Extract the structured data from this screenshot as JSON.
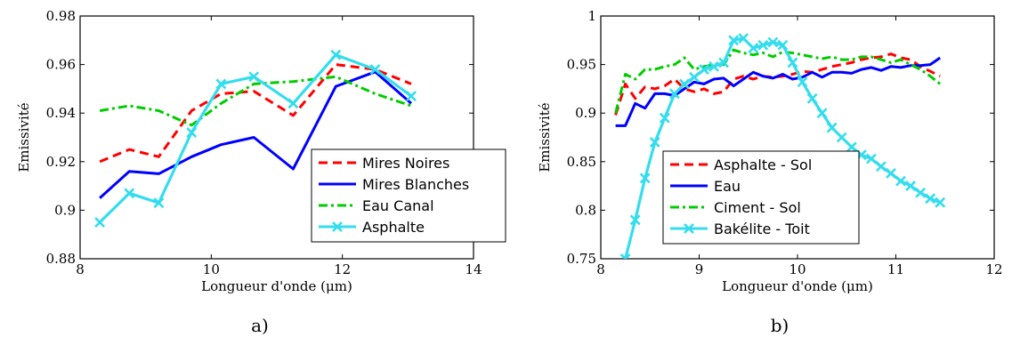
{
  "chart_data": [
    {
      "type": "line",
      "panel_label": "a)",
      "xlabel": "Longueur d'onde (μm)",
      "ylabel": "Emissivité",
      "xlim": [
        8,
        14
      ],
      "ylim": [
        0.88,
        0.98
      ],
      "xticks": [
        8,
        10,
        12,
        14
      ],
      "yticks": [
        0.88,
        0.9,
        0.92,
        0.94,
        0.96,
        0.98
      ],
      "xtick_labels": [
        "8",
        "10",
        "12",
        "14"
      ],
      "ytick_labels": [
        "0.88",
        "0.9",
        "0.92",
        "0.94",
        "0.96",
        "0.98"
      ],
      "grid": false,
      "legend_position": "bottom-right",
      "series": [
        {
          "name": "Mires Noires",
          "color": "#ff0000",
          "style": "dashed",
          "marker": "none",
          "x": [
            8.3,
            8.75,
            9.2,
            9.7,
            10.15,
            10.65,
            11.25,
            11.9,
            12.5,
            13.05
          ],
          "y": [
            0.92,
            0.925,
            0.922,
            0.941,
            0.948,
            0.949,
            0.939,
            0.96,
            0.958,
            0.952
          ]
        },
        {
          "name": "Mires Blanches",
          "color": "#0000ff",
          "style": "solid",
          "marker": "none",
          "x": [
            8.3,
            8.75,
            9.2,
            9.7,
            10.15,
            10.65,
            11.25,
            11.9,
            12.5,
            13.05
          ],
          "y": [
            0.905,
            0.916,
            0.915,
            0.922,
            0.927,
            0.93,
            0.917,
            0.951,
            0.957,
            0.944
          ]
        },
        {
          "name": "Eau Canal",
          "color": "#00cc00",
          "style": "dashdot",
          "marker": "none",
          "x": [
            8.3,
            8.75,
            9.2,
            9.7,
            10.15,
            10.65,
            11.25,
            11.9,
            12.5,
            13.05
          ],
          "y": [
            0.941,
            0.943,
            0.941,
            0.935,
            0.944,
            0.952,
            0.953,
            0.955,
            0.948,
            0.943
          ]
        },
        {
          "name": "Asphalte",
          "color": "#33ddee",
          "style": "solid",
          "marker": "x",
          "x": [
            8.3,
            8.75,
            9.2,
            9.7,
            10.15,
            10.65,
            11.25,
            11.9,
            12.5,
            13.05
          ],
          "y": [
            0.895,
            0.907,
            0.903,
            0.932,
            0.952,
            0.955,
            0.944,
            0.964,
            0.958,
            0.947
          ]
        }
      ]
    },
    {
      "type": "line",
      "panel_label": "b)",
      "xlabel": "Longueur d'onde (μm)",
      "ylabel": "Emissivité",
      "xlim": [
        8,
        12
      ],
      "ylim": [
        0.75,
        1
      ],
      "xticks": [
        8,
        9,
        10,
        11,
        12
      ],
      "yticks": [
        0.75,
        0.8,
        0.85,
        0.9,
        0.95,
        1
      ],
      "xtick_labels": [
        "8",
        "9",
        "10",
        "11",
        "12"
      ],
      "ytick_labels": [
        "0.75",
        "0.8",
        "0.85",
        "0.9",
        "0.95",
        "1"
      ],
      "grid": false,
      "legend_position": "bottom-left",
      "series": [
        {
          "name": "Asphalte - Sol",
          "color": "#ff0000",
          "style": "dashed",
          "marker": "none",
          "x": [
            8.15,
            8.25,
            8.35,
            8.45,
            8.55,
            8.65,
            8.75,
            8.85,
            8.95,
            9.05,
            9.15,
            9.25,
            9.35,
            9.45,
            9.55,
            9.65,
            9.75,
            9.85,
            9.95,
            10.05,
            10.15,
            10.25,
            10.35,
            10.45,
            10.55,
            10.65,
            10.75,
            10.85,
            10.95,
            11.05,
            11.15,
            11.25,
            11.35,
            11.45
          ],
          "y": [
            0.898,
            0.93,
            0.915,
            0.927,
            0.925,
            0.928,
            0.935,
            0.925,
            0.922,
            0.925,
            0.92,
            0.922,
            0.935,
            0.938,
            0.935,
            0.938,
            0.937,
            0.938,
            0.94,
            0.943,
            0.942,
            0.945,
            0.948,
            0.95,
            0.952,
            0.955,
            0.957,
            0.958,
            0.961,
            0.957,
            0.955,
            0.948,
            0.943,
            0.938
          ]
        },
        {
          "name": "Eau",
          "color": "#0000ff",
          "style": "solid",
          "marker": "none",
          "x": [
            8.15,
            8.25,
            8.35,
            8.45,
            8.55,
            8.65,
            8.75,
            8.85,
            8.95,
            9.05,
            9.15,
            9.25,
            9.35,
            9.45,
            9.55,
            9.65,
            9.75,
            9.85,
            9.95,
            10.05,
            10.15,
            10.25,
            10.35,
            10.45,
            10.55,
            10.65,
            10.75,
            10.85,
            10.95,
            11.05,
            11.15,
            11.25,
            11.35,
            11.45
          ],
          "y": [
            0.887,
            0.887,
            0.91,
            0.905,
            0.92,
            0.92,
            0.918,
            0.925,
            0.932,
            0.93,
            0.935,
            0.936,
            0.928,
            0.935,
            0.942,
            0.938,
            0.936,
            0.94,
            0.935,
            0.937,
            0.942,
            0.937,
            0.942,
            0.942,
            0.941,
            0.945,
            0.947,
            0.944,
            0.948,
            0.947,
            0.949,
            0.949,
            0.95,
            0.957
          ]
        },
        {
          "name": "Ciment - Sol",
          "color": "#00cc00",
          "style": "dashdot",
          "marker": "none",
          "x": [
            8.15,
            8.25,
            8.35,
            8.45,
            8.55,
            8.65,
            8.75,
            8.85,
            8.95,
            9.05,
            9.15,
            9.25,
            9.35,
            9.45,
            9.55,
            9.65,
            9.75,
            9.85,
            9.95,
            10.05,
            10.15,
            10.25,
            10.35,
            10.45,
            10.55,
            10.65,
            10.75,
            10.85,
            10.95,
            11.05,
            11.15,
            11.25,
            11.35,
            11.45
          ],
          "y": [
            0.9,
            0.94,
            0.935,
            0.945,
            0.945,
            0.948,
            0.95,
            0.957,
            0.945,
            0.948,
            0.95,
            0.95,
            0.965,
            0.962,
            0.96,
            0.962,
            0.958,
            0.963,
            0.962,
            0.96,
            0.958,
            0.956,
            0.958,
            0.955,
            0.955,
            0.958,
            0.958,
            0.955,
            0.952,
            0.955,
            0.95,
            0.945,
            0.938,
            0.93
          ]
        },
        {
          "name": "Bakélite - Toit",
          "color": "#33ddee",
          "style": "solid",
          "marker": "x",
          "x": [
            8.25,
            8.35,
            8.45,
            8.55,
            8.65,
            8.75,
            8.85,
            8.95,
            9.05,
            9.15,
            9.25,
            9.35,
            9.45,
            9.55,
            9.65,
            9.75,
            9.85,
            9.95,
            10.05,
            10.15,
            10.25,
            10.35,
            10.45,
            10.55,
            10.65,
            10.75,
            10.85,
            10.95,
            11.05,
            11.15,
            11.25,
            11.35,
            11.45
          ],
          "y": [
            0.75,
            0.79,
            0.833,
            0.87,
            0.895,
            0.92,
            0.93,
            0.937,
            0.945,
            0.948,
            0.952,
            0.975,
            0.977,
            0.967,
            0.97,
            0.973,
            0.97,
            0.952,
            0.932,
            0.915,
            0.9,
            0.885,
            0.875,
            0.865,
            0.857,
            0.853,
            0.845,
            0.838,
            0.83,
            0.825,
            0.818,
            0.812,
            0.808
          ]
        }
      ]
    }
  ]
}
